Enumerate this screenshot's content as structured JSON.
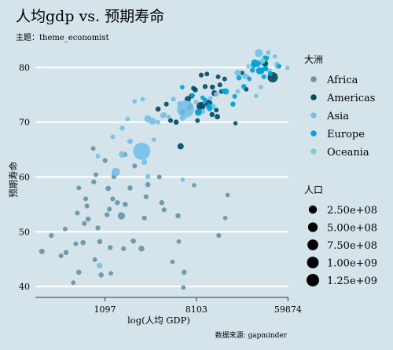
{
  "chart_data": {
    "type": "scatter",
    "title": "人均gdp vs. 预期寿命",
    "subtitle": "主题：theme_economist",
    "xlabel": "log(人均 GDP)",
    "ylabel": "预期寿命",
    "caption": "数据来源: gapminder",
    "x_scale": "log",
    "x_ticks": [
      1097,
      8103,
      59874
    ],
    "x_tick_labels": [
      "1097",
      "8103",
      "59874"
    ],
    "y_ticks": [
      40,
      50,
      60,
      70,
      80
    ],
    "y_tick_labels": [
      "40",
      "50",
      "60",
      "70",
      "80"
    ],
    "xlim": [
      240,
      60500
    ],
    "ylim": [
      38,
      84
    ],
    "grid": "horizontal",
    "legend_placement": "right",
    "color_legend": {
      "title": "大洲",
      "items": [
        {
          "name": "Africa",
          "color": "#6794a7"
        },
        {
          "name": "Americas",
          "color": "#014d64"
        },
        {
          "name": "Asia",
          "color": "#76c0e8"
        },
        {
          "name": "Europe",
          "color": "#01a2d9"
        },
        {
          "name": "Oceania",
          "color": "#7ad2d0"
        }
      ]
    },
    "size_legend": {
      "title": "人口",
      "items": [
        {
          "label": "2.50e+08",
          "value": 250000000
        },
        {
          "label": "5.00e+08",
          "value": 500000000
        },
        {
          "label": "7.50e+08",
          "value": 750000000
        },
        {
          "label": "1.00e+09",
          "value": 1000000000
        },
        {
          "label": "1.25e+09",
          "value": 1250000000
        }
      ]
    },
    "series": [
      {
        "name": "Africa",
        "points": [
          [
            277,
            46.4,
            20
          ],
          [
            470,
            46.2,
            10
          ],
          [
            620,
            42.6,
            12
          ],
          [
            760,
            52.3,
            10
          ],
          [
            1010,
            42.1,
            10
          ],
          [
            340,
            49.3,
            8
          ],
          [
            420,
            45.6,
            6
          ],
          [
            580,
            47.8,
            5
          ],
          [
            680,
            48.0,
            10
          ],
          [
            740,
            54.7,
            6
          ],
          [
            860,
            59.1,
            8
          ],
          [
            940,
            50.7,
            8
          ],
          [
            1210,
            54.1,
            6
          ],
          [
            1440,
            55.3,
            8
          ],
          [
            1570,
            52.9,
            80
          ],
          [
            1710,
            55.0,
            12
          ],
          [
            1900,
            58.0,
            10
          ],
          [
            1340,
            60.1,
            12
          ],
          [
            2040,
            48.3,
            12
          ],
          [
            2440,
            46.9,
            28
          ],
          [
            3800,
            55.3,
            10
          ],
          [
            5420,
            52.9,
            10
          ],
          [
            6200,
            42.6,
            10
          ],
          [
            13200,
            49.3,
            6
          ],
          [
            1150,
            53.1,
            8
          ],
          [
            1300,
            56.0,
            6
          ],
          [
            2600,
            52.5,
            6
          ],
          [
            2800,
            58.6,
            10
          ],
          [
            4000,
            54.0,
            6
          ],
          [
            1100,
            63.0,
            8
          ],
          [
            850,
            65.2,
            4
          ],
          [
            1700,
            64.1,
            4
          ],
          [
            2100,
            62.0,
            6
          ],
          [
            2700,
            56.4,
            8
          ],
          [
            1250,
            42.4,
            4
          ],
          [
            880,
            44.9,
            4
          ],
          [
            620,
            58.0,
            5
          ],
          [
            720,
            56.0,
            5
          ],
          [
            4800,
            44.5,
            3
          ],
          [
            5500,
            48.2,
            3
          ],
          [
            7700,
            58.5,
            2
          ],
          [
            15200,
            52.5,
            2
          ],
          [
            16000,
            56.7,
            2
          ],
          [
            550,
            40.7,
            3
          ],
          [
            6100,
            39.8,
            3
          ],
          [
            980,
            48.2,
            12
          ],
          [
            1180,
            57.9,
            14
          ],
          [
            460,
            50.5,
            4
          ],
          [
            900,
            60.4,
            5
          ],
          [
            3600,
            60.0,
            5
          ],
          [
            1230,
            47.1,
            8
          ],
          [
            1650,
            46.9,
            6
          ],
          [
            600,
            53.4,
            6
          ],
          [
            700,
            51.5,
            5
          ]
        ]
      },
      {
        "name": "Americas",
        "points": [
          [
            5730,
            65.6,
            40
          ],
          [
            8950,
            72.9,
            180
          ],
          [
            11980,
            75.3,
            30
          ],
          [
            12780,
            71.0,
            15
          ],
          [
            10610,
            73.4,
            100
          ],
          [
            36320,
            80.7,
            33
          ],
          [
            42950,
            78.2,
            300
          ],
          [
            7000,
            72.9,
            10
          ],
          [
            9000,
            78.6,
            6
          ],
          [
            6900,
            72.6,
            10
          ],
          [
            7300,
            74.8,
            14
          ],
          [
            7900,
            75.9,
            10
          ],
          [
            5200,
            70.0,
            12
          ],
          [
            6000,
            71.9,
            8
          ],
          [
            3500,
            72.4,
            12
          ],
          [
            8500,
            72.0,
            4
          ],
          [
            9100,
            72.8,
            5
          ],
          [
            10500,
            72.9,
            6
          ],
          [
            11400,
            71.4,
            10
          ],
          [
            13000,
            78.3,
            4
          ],
          [
            15000,
            77.9,
            4
          ],
          [
            19000,
            69.8,
            1
          ],
          [
            7600,
            76.2,
            6
          ],
          [
            4600,
            70.3,
            6
          ],
          [
            6700,
            74.2,
            40
          ],
          [
            5900,
            71.8,
            4
          ],
          [
            24000,
            76.0,
            4
          ],
          [
            12500,
            72.2,
            3
          ],
          [
            11500,
            76.4,
            10
          ],
          [
            7100,
            73.0,
            2
          ],
          [
            8300,
            70.3,
            4
          ],
          [
            4200,
            73.3,
            5
          ],
          [
            14000,
            75.6,
            6
          ],
          [
            10200,
            78.8,
            4
          ],
          [
            22000,
            79.0,
            2
          ],
          [
            9800,
            76.5,
            8
          ],
          [
            13500,
            76.8,
            6
          ]
        ]
      },
      {
        "name": "Asia",
        "points": [
          [
            974,
            43.8,
            30
          ],
          [
            2452,
            64.7,
            1300
          ],
          [
            1391,
            60.9,
            150
          ],
          [
            940,
            63.8,
            4
          ],
          [
            1600,
            64.1,
            50
          ],
          [
            1900,
            66.5,
            18
          ],
          [
            2800,
            70.6,
            80
          ],
          [
            3900,
            71.2,
            20
          ],
          [
            4900,
            74.2,
            6
          ],
          [
            6400,
            72.4,
            1300
          ],
          [
            11600,
            72.9,
            25
          ],
          [
            20000,
            79.0,
            48
          ],
          [
            39000,
            82.7,
            6
          ],
          [
            31700,
            82.6,
            127
          ],
          [
            47000,
            80.6,
            4
          ],
          [
            29800,
            74.8,
            2
          ],
          [
            23400,
            78.4,
            23
          ],
          [
            5600,
            73.4,
            5
          ],
          [
            2600,
            62.7,
            25
          ],
          [
            3100,
            70.2,
            80
          ],
          [
            1600,
            68.9,
            10
          ],
          [
            2800,
            60.1,
            10
          ],
          [
            3200,
            66.8,
            3
          ],
          [
            4000,
            71.4,
            6
          ],
          [
            6000,
            70.8,
            28
          ],
          [
            9300,
            72.0,
            8
          ],
          [
            10500,
            72.7,
            3
          ],
          [
            12500,
            75.1,
            7
          ],
          [
            25000,
            78.2,
            3
          ],
          [
            33000,
            76.4,
            3
          ],
          [
            40000,
            79.4,
            3
          ],
          [
            47200,
            80.2,
            4
          ],
          [
            6000,
            59.5,
            2
          ],
          [
            1300,
            67.3,
            4
          ],
          [
            1800,
            70.6,
            4
          ],
          [
            2500,
            74.2,
            3
          ],
          [
            11000,
            74.4,
            3
          ],
          [
            8000,
            73.7,
            3
          ],
          [
            59000,
            79.9,
            2
          ],
          [
            20000,
            75.6,
            4
          ],
          [
            45000,
            82.0,
            2
          ],
          [
            4400,
            71.0,
            2
          ],
          [
            2100,
            73.8,
            4
          ],
          [
            3500,
            70.0,
            2
          ]
        ]
      },
      {
        "name": "Europe",
        "points": [
          [
            5937,
            76.4,
            3
          ],
          [
            36126,
            79.8,
            8
          ],
          [
            33692,
            79.4,
            10
          ],
          [
            7446,
            74.9,
            4
          ],
          [
            10681,
            73.0,
            7
          ],
          [
            14619,
            75.7,
            4
          ],
          [
            22833,
            76.5,
            10
          ],
          [
            35278,
            78.3,
            5
          ],
          [
            33207,
            79.3,
            5
          ],
          [
            30470,
            80.7,
            61
          ],
          [
            32170,
            79.4,
            82
          ],
          [
            27538,
            79.5,
            11
          ],
          [
            18009,
            73.3,
            10
          ],
          [
            36181,
            81.8,
            3
          ],
          [
            40676,
            78.9,
            4
          ],
          [
            28570,
            80.5,
            58
          ],
          [
            9254,
            74.5,
            1
          ],
          [
            36798,
            79.8,
            16
          ],
          [
            49357,
            80.2,
            5
          ],
          [
            15390,
            75.6,
            38
          ],
          [
            20510,
            78.1,
            10
          ],
          [
            10808,
            72.5,
            22
          ],
          [
            9786,
            74.0,
            10
          ],
          [
            18678,
            74.7,
            5
          ],
          [
            25768,
            77.9,
            2
          ],
          [
            28821,
            80.9,
            40
          ],
          [
            33860,
            80.9,
            9
          ],
          [
            37506,
            81.7,
            8
          ],
          [
            8458,
            71.8,
            71
          ],
          [
            33203,
            79.4,
            60
          ]
        ]
      },
      {
        "name": "Oceania",
        "points": [
          [
            34435,
            81.2,
            20
          ],
          [
            25185,
            80.2,
            4
          ]
        ]
      }
    ]
  }
}
